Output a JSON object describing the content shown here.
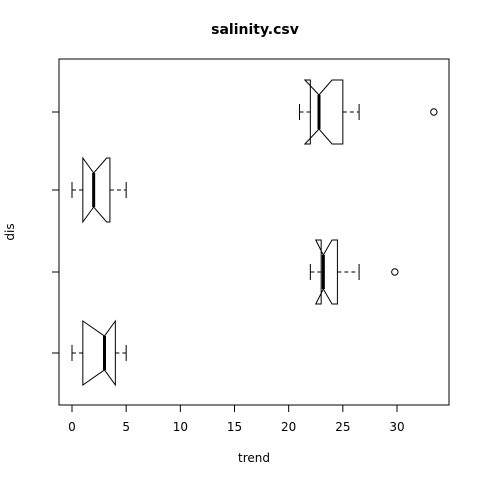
{
  "chart_data": {
    "type": "boxplot",
    "title": "salinity.csv",
    "xlabel": "trend",
    "ylabel": "dis",
    "orientation": "horizontal",
    "notched": true,
    "xlim": [
      -1.2,
      34.8
    ],
    "xticks": [
      0,
      5,
      10,
      15,
      20,
      25,
      30
    ],
    "groups": [
      {
        "whisker_low": 0.0,
        "q1": 1.0,
        "median": 3.0,
        "q3": 4.0,
        "whisker_high": 5.0,
        "notch_low": 1.0,
        "notch_high": 4.0,
        "outliers": []
      },
      {
        "whisker_low": 22.0,
        "q1": 23.0,
        "median": 23.2,
        "q3": 24.5,
        "whisker_high": 26.5,
        "notch_low": 22.5,
        "notch_high": 24.0,
        "outliers": [
          29.8
        ]
      },
      {
        "whisker_low": 0.0,
        "q1": 1.0,
        "median": 2.0,
        "q3": 3.5,
        "whisker_high": 5.0,
        "notch_low": 1.0,
        "notch_high": 3.2,
        "outliers": []
      },
      {
        "whisker_low": 21.0,
        "q1": 22.0,
        "median": 22.8,
        "q3": 25.0,
        "whisker_high": 26.5,
        "notch_low": 21.5,
        "notch_high": 24.0,
        "outliers": [
          33.4
        ]
      }
    ]
  }
}
